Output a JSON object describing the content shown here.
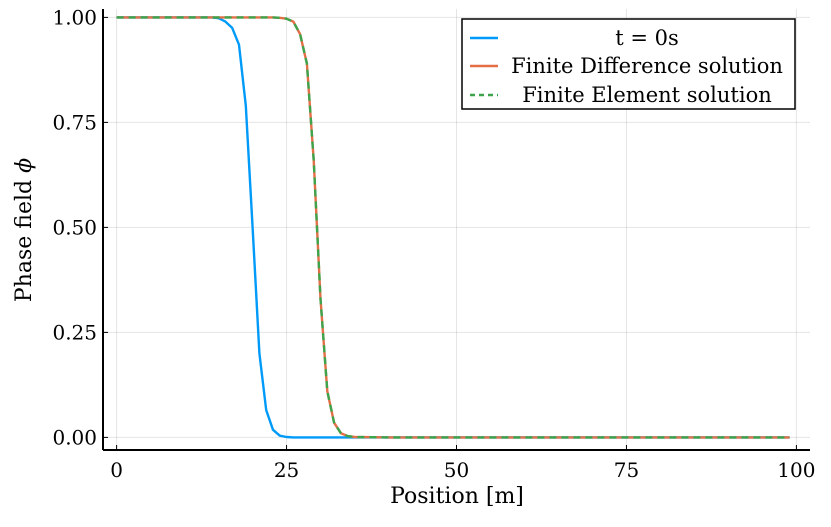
{
  "chart_data": {
    "type": "line",
    "title": "",
    "xlabel": "Position [m]",
    "ylabel": "Phase field",
    "ylabel_symbol": "ϕ",
    "xlim": [
      -2,
      102
    ],
    "ylim": [
      -0.03,
      1.02
    ],
    "xticks": [
      0,
      25,
      50,
      75,
      100
    ],
    "xtick_labels": [
      "0",
      "25",
      "50",
      "75",
      "100"
    ],
    "yticks": [
      0,
      0.25,
      0.5,
      0.75,
      1.0
    ],
    "ytick_labels": [
      "0.00",
      "0.25",
      "0.50",
      "0.75",
      "1.00"
    ],
    "grid": true,
    "legend_position": "top-right",
    "series": [
      {
        "name": "t = 0s",
        "color": "#009af9",
        "dash": "solid",
        "x": [
          0,
          5,
          10,
          14,
          15,
          16,
          17,
          18,
          19,
          20,
          21,
          22,
          23,
          24,
          25,
          26,
          30,
          40,
          60,
          80,
          99
        ],
        "y": [
          1.0,
          1.0,
          1.0,
          1.0,
          0.998,
          0.99,
          0.975,
          0.935,
          0.79,
          0.5,
          0.2,
          0.065,
          0.018,
          0.004,
          0.001,
          0.0,
          0.0,
          0.0,
          0.0,
          0.0,
          0.0
        ]
      },
      {
        "name": "Finite Difference solution",
        "color": "#e26f46",
        "dash": "solid",
        "x": [
          0,
          10,
          20,
          23,
          24,
          25,
          26,
          27,
          28,
          29,
          30,
          31,
          32,
          33,
          34,
          35,
          40,
          60,
          80,
          99
        ],
        "y": [
          1.0,
          1.0,
          1.0,
          1.0,
          0.999,
          0.997,
          0.99,
          0.96,
          0.89,
          0.66,
          0.33,
          0.11,
          0.035,
          0.01,
          0.003,
          0.001,
          0.0,
          0.0,
          0.0,
          0.0
        ]
      },
      {
        "name": "Finite Element solution",
        "color": "#3da44d",
        "dash": "dashed",
        "x": [
          0,
          10,
          20,
          23,
          24,
          25,
          26,
          27,
          28,
          29,
          30,
          31,
          32,
          33,
          34,
          35,
          40,
          60,
          80,
          99
        ],
        "y": [
          1.0,
          1.0,
          1.0,
          1.0,
          0.999,
          0.997,
          0.99,
          0.96,
          0.89,
          0.66,
          0.33,
          0.11,
          0.035,
          0.01,
          0.003,
          0.001,
          0.0,
          0.0,
          0.0,
          0.0
        ]
      }
    ]
  }
}
